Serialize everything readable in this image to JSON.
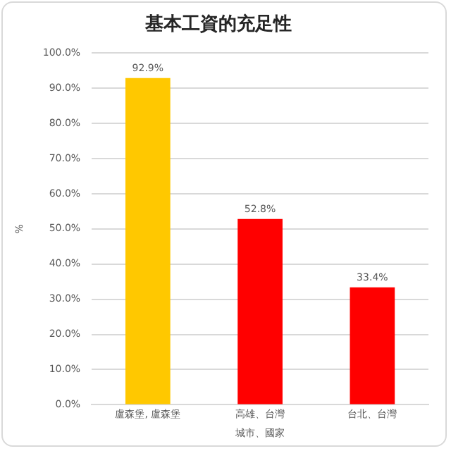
{
  "chart_data": {
    "type": "bar",
    "title": "基本工資的充足性",
    "xlabel": "城市、國家",
    "ylabel": "%",
    "categories": [
      "盧森堡, 盧森堡",
      "高雄、台灣",
      "台北、台灣"
    ],
    "values": [
      92.9,
      52.8,
      33.4
    ],
    "colors": [
      "#ffc800",
      "#ff0000",
      "#ff0000"
    ],
    "value_labels": [
      "92.9%",
      "52.8%",
      "33.4%"
    ],
    "ylim": [
      0,
      100
    ],
    "yticks": [
      {
        "value": 0,
        "label": "0.0%"
      },
      {
        "value": 10,
        "label": "10.0%"
      },
      {
        "value": 20,
        "label": "20.0%"
      },
      {
        "value": 30,
        "label": "30.0%"
      },
      {
        "value": 40,
        "label": "40.0%"
      },
      {
        "value": 50,
        "label": "50.0%"
      },
      {
        "value": 60,
        "label": "60.0%"
      },
      {
        "value": 70,
        "label": "70.0%"
      },
      {
        "value": 80,
        "label": "80.0%"
      },
      {
        "value": 90,
        "label": "90.0%"
      },
      {
        "value": 100,
        "label": "100.0%"
      }
    ],
    "grid": "y",
    "legend": false
  }
}
